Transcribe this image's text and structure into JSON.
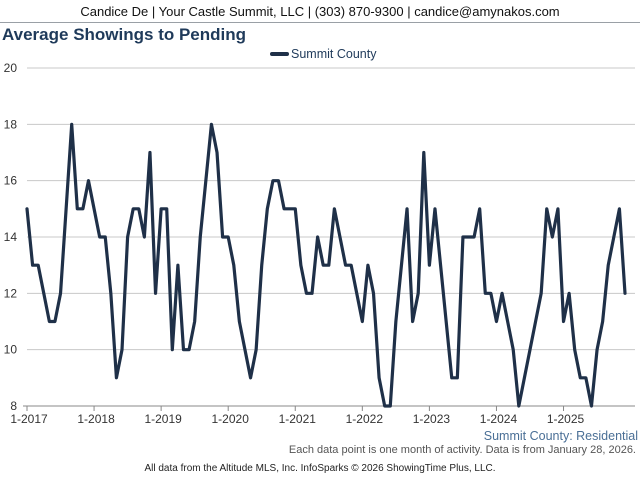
{
  "header": {
    "contact_line": "Candice De | Your Castle Summit, LLC | (303) 870-9300 | candice@amynakos.com"
  },
  "footer": {
    "subtitle": "Summit County: Residential",
    "note": "Each data point is one month of activity. Data is from January 28, 2026.",
    "credit": "All data from the Altitude MLS, Inc. InfoSparks © 2026 ShowingTime Plus, LLC."
  },
  "colors": {
    "series": "#1f3048",
    "grid": "#c8c8c8",
    "title": "#1f3a5a",
    "axis_text": "#333333"
  },
  "chart_data": {
    "type": "line",
    "title": "Average Showings to Pending",
    "xlabel": "",
    "ylabel": "",
    "ylim": [
      8,
      20
    ],
    "yticks": [
      8,
      10,
      12,
      14,
      16,
      18,
      20
    ],
    "xlim": [
      "2017-01",
      "2025-12"
    ],
    "xticks": [
      {
        "label": "1-2017",
        "value": "2017-01"
      },
      {
        "label": "1-2018",
        "value": "2018-01"
      },
      {
        "label": "1-2019",
        "value": "2019-01"
      },
      {
        "label": "1-2020",
        "value": "2020-01"
      },
      {
        "label": "1-2021",
        "value": "2021-01"
      },
      {
        "label": "1-2022",
        "value": "2022-01"
      },
      {
        "label": "1-2023",
        "value": "2023-01"
      },
      {
        "label": "1-2024",
        "value": "2024-01"
      },
      {
        "label": "1-2025",
        "value": "2025-01"
      }
    ],
    "grid": true,
    "legend_position": "top-center",
    "series": [
      {
        "name": "Summit County",
        "x": [
          "2017-01",
          "2017-02",
          "2017-03",
          "2017-04",
          "2017-05",
          "2017-06",
          "2017-07",
          "2017-08",
          "2017-09",
          "2017-10",
          "2017-11",
          "2017-12",
          "2018-01",
          "2018-02",
          "2018-03",
          "2018-04",
          "2018-05",
          "2018-06",
          "2018-07",
          "2018-08",
          "2018-09",
          "2018-10",
          "2018-11",
          "2018-12",
          "2019-01",
          "2019-02",
          "2019-03",
          "2019-04",
          "2019-05",
          "2019-06",
          "2019-07",
          "2019-08",
          "2019-09",
          "2019-10",
          "2019-11",
          "2019-12",
          "2020-01",
          "2020-02",
          "2020-03",
          "2020-04",
          "2020-05",
          "2020-06",
          "2020-07",
          "2020-08",
          "2020-09",
          "2020-10",
          "2020-11",
          "2020-12",
          "2021-01",
          "2021-02",
          "2021-03",
          "2021-04",
          "2021-05",
          "2021-06",
          "2021-07",
          "2021-08",
          "2021-09",
          "2021-10",
          "2021-11",
          "2021-12",
          "2022-01",
          "2022-02",
          "2022-03",
          "2022-04",
          "2022-05",
          "2022-06",
          "2022-07",
          "2022-08",
          "2022-09",
          "2022-10",
          "2022-11",
          "2022-12",
          "2023-01",
          "2023-02",
          "2023-03",
          "2023-04",
          "2023-05",
          "2023-06",
          "2023-07",
          "2023-08",
          "2023-09",
          "2023-10",
          "2023-11",
          "2023-12",
          "2024-01",
          "2024-02",
          "2024-03",
          "2024-04",
          "2024-05",
          "2024-06",
          "2024-07",
          "2024-08",
          "2024-09",
          "2024-10",
          "2024-11",
          "2024-12",
          "2025-01",
          "2025-02",
          "2025-03",
          "2025-04",
          "2025-05",
          "2025-06",
          "2025-07",
          "2025-08",
          "2025-09",
          "2025-10",
          "2025-11",
          "2025-12"
        ],
        "values": [
          15,
          13,
          13,
          12,
          11,
          11,
          12,
          15,
          18,
          15,
          15,
          16,
          15,
          14,
          14,
          12,
          9,
          10,
          14,
          15,
          15,
          14,
          17,
          12,
          15,
          15,
          10,
          13,
          10,
          10,
          11,
          14,
          16,
          18,
          17,
          14,
          14,
          13,
          11,
          10,
          9,
          10,
          13,
          15,
          16,
          16,
          15,
          15,
          15,
          13,
          12,
          12,
          14,
          13,
          13,
          15,
          14,
          13,
          13,
          12,
          11,
          13,
          12,
          9,
          8,
          8,
          11,
          13,
          15,
          11,
          12,
          17,
          13,
          15,
          13,
          11,
          9,
          9,
          14,
          14,
          14,
          15,
          12,
          12,
          11,
          12,
          11,
          10,
          8,
          9,
          10,
          11,
          12,
          15,
          14,
          15,
          11,
          12,
          10,
          9,
          9,
          8,
          10,
          11,
          13,
          14,
          15,
          12
        ]
      }
    ]
  }
}
